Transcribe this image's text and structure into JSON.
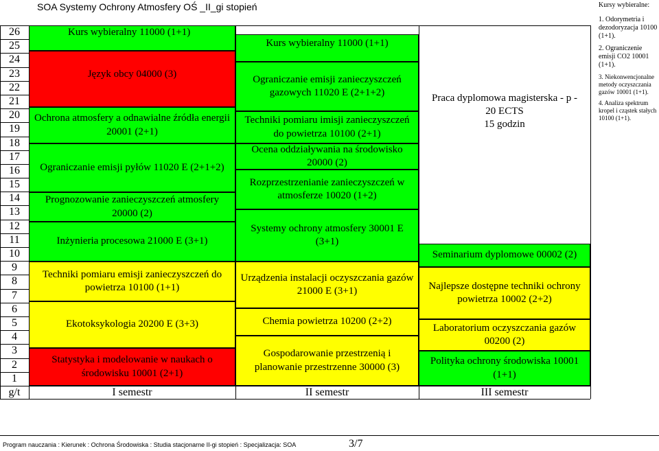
{
  "doc_title": "SOA Systemy Ochrony Atmosfery OŚ _II_gi stopień",
  "row_numbers": [
    "26",
    "25",
    "24",
    "23",
    "22",
    "21",
    "20",
    "19",
    "18",
    "17",
    "16",
    "15",
    "14",
    "13",
    "12",
    "11",
    "10",
    "9",
    "8",
    "7",
    "6",
    "5",
    "4",
    "3",
    "2",
    "1"
  ],
  "semester_row": {
    "header": "g/t",
    "sem1": "I semestr",
    "sem2": "II semestr",
    "sem3": "III semestr"
  },
  "semester1": {
    "kurs_wybieralny": "Kurs wybieralny 11000 (1+1)",
    "jezyk": "Język obcy 04000 (3)",
    "ochrona": "Ochrona atmosfery a odnawialne źródła energii 20001 (2+1)",
    "pyly": "Ograniczanie emisji pyłów 11020 E (2+1+2)",
    "prognozowanie": "Prognozowanie zanieczyszczeń atmosfery 20000 (2)",
    "inzynieria": "Inżynieria procesowa 21000 E (3+1)",
    "techniki": "Techniki pomiaru emisji zanieczyszczeń do powietrza 10100 (1+1)",
    "ekotoks": "Ekotoksykologia 20200 E (3+3)",
    "statystyka": "Statystyka i modelowanie w naukach o środowisku 10001 (2+1)"
  },
  "semester2": {
    "kurs_wybieralny": "Kurs wybieralny 11000 (1+1)",
    "gazowych": "Ograniczanie emisji zanieczyszczeń gazowych 11020 E (2+1+2)",
    "imisji": "Techniki pomiaru imisji zanieczyszczeń do powietrza 10100 (2+1)",
    "ocena": "Ocena oddziaływania na środowisko 20000 (2)",
    "rozprzestrzenianie": "Rozprzestrzenianie zanieczyszczeń w atmosferze 10020 (1+2)",
    "systemy": "Systemy ochrony atmosfery 30001 E (3+1)",
    "urzadzenia": "Urządzenia instalacji oczyszczania gazów 21000 E (3+1)",
    "chemia": "Chemia powietrza 10200 (2+2)",
    "gospodarowanie": "Gospodarowanie przestrzenią i planowanie przestrzenne 30000 (3)"
  },
  "semester3": {
    "praca_line1": "Praca dyplomowa magisterska - p -",
    "praca_line2": "20 ECTS",
    "praca_line3": "15 godzin",
    "seminarium": "Seminarium dyplomowe 00002 (2)",
    "najlepsze": "Najlepsze dostępne techniki ochrony powietrza 10002 (2+2)",
    "laboratorium": "Laboratorium oczyszczania gazów 00200 (2)",
    "polityka": "Polityka ochrony środowiska 10001 (1+1)"
  },
  "side_notes": {
    "title": "Kursy wybieralne:",
    "items": [
      "1. Odorymetria i dezodoryzacja 10100 (1+1).",
      "2. Ograniczenie emisji CO2 10001 (1+1).",
      "3. Niekonwencjonalne metody oczyszczania gazów 10001 (1+1).",
      "4. Analiza spektrum kropel i cząstek stałych 10100 (1+1)."
    ]
  },
  "footer": {
    "text": "Program nauczania : Kierunek : Ochrona Środowiska : Studia stacjonarne II-gi stopień : Specjalizacja: SOA",
    "page": "3/7"
  },
  "colors": {
    "green": "#00ff00",
    "red": "#ff0000",
    "yellow": "#ffff00",
    "light_green": "#ccffcc"
  }
}
